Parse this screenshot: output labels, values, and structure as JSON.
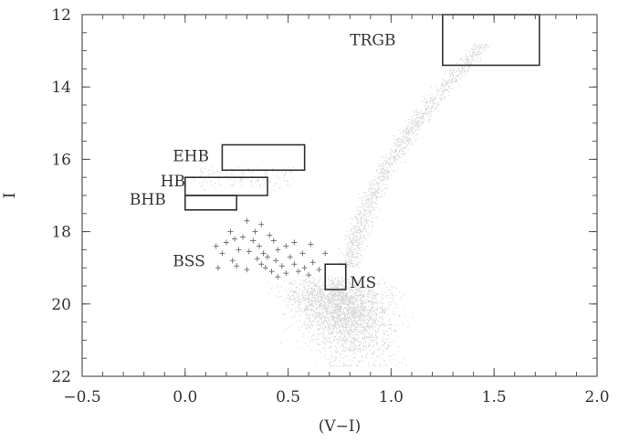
{
  "chart_data": {
    "type": "scatter",
    "xlabel": "(V−I)",
    "ylabel": "I",
    "xlim": [
      -0.5,
      2.0
    ],
    "ylim": [
      22,
      12
    ],
    "y_inverted": true,
    "x_ticks": [
      {
        "value": -0.5,
        "label": "−0.5"
      },
      {
        "value": 0.0,
        "label": "0.0"
      },
      {
        "value": 0.5,
        "label": "0.5"
      },
      {
        "value": 1.0,
        "label": "1.0"
      },
      {
        "value": 1.5,
        "label": "1.5"
      },
      {
        "value": 2.0,
        "label": "2.0"
      }
    ],
    "y_ticks": [
      {
        "value": 12,
        "label": "12"
      },
      {
        "value": 14,
        "label": "14"
      },
      {
        "value": 16,
        "label": "16"
      },
      {
        "value": 18,
        "label": "18"
      },
      {
        "value": 20,
        "label": "20"
      },
      {
        "value": 22,
        "label": "22"
      }
    ],
    "grid": false,
    "boxes": [
      {
        "name": "TRGB",
        "x": [
          1.25,
          1.72
        ],
        "y": [
          12.0,
          13.4
        ]
      },
      {
        "name": "EHB",
        "x": [
          0.18,
          0.58
        ],
        "y": [
          15.6,
          16.3
        ]
      },
      {
        "name": "HB",
        "x": [
          0.0,
          0.4
        ],
        "y": [
          16.5,
          17.0
        ]
      },
      {
        "name": "BHB",
        "x": [
          0.0,
          0.25
        ],
        "y": [
          17.0,
          17.4
        ]
      },
      {
        "name": "MS",
        "x": [
          0.68,
          0.78
        ],
        "y": [
          18.9,
          19.6
        ]
      }
    ],
    "labels": [
      {
        "text": "TRGB",
        "x": 0.8,
        "y": 12.7
      },
      {
        "text": "EHB",
        "x": -0.06,
        "y": 15.9
      },
      {
        "text": "HB",
        "x": -0.12,
        "y": 16.6
      },
      {
        "text": "BHB",
        "x": -0.27,
        "y": 17.1
      },
      {
        "text": "BSS",
        "x": -0.06,
        "y": 18.8
      },
      {
        "text": "MS",
        "x": 0.8,
        "y": 19.4
      }
    ],
    "bss_points": [
      {
        "x": 0.3,
        "y": 17.7
      },
      {
        "x": 0.37,
        "y": 17.8
      },
      {
        "x": 0.22,
        "y": 18.0
      },
      {
        "x": 0.34,
        "y": 18.0
      },
      {
        "x": 0.41,
        "y": 18.1
      },
      {
        "x": 0.28,
        "y": 18.15
      },
      {
        "x": 0.24,
        "y": 18.2
      },
      {
        "x": 0.33,
        "y": 18.25
      },
      {
        "x": 0.43,
        "y": 18.25
      },
      {
        "x": 0.53,
        "y": 18.3
      },
      {
        "x": 0.61,
        "y": 18.35
      },
      {
        "x": 0.49,
        "y": 18.4
      },
      {
        "x": 0.15,
        "y": 18.4
      },
      {
        "x": 0.36,
        "y": 18.4
      },
      {
        "x": 0.26,
        "y": 18.5
      },
      {
        "x": 0.45,
        "y": 18.5
      },
      {
        "x": 0.31,
        "y": 18.55
      },
      {
        "x": 0.38,
        "y": 18.6
      },
      {
        "x": 0.57,
        "y": 18.6
      },
      {
        "x": 0.68,
        "y": 18.6
      },
      {
        "x": 0.18,
        "y": 18.6
      },
      {
        "x": 0.4,
        "y": 18.7
      },
      {
        "x": 0.51,
        "y": 18.7
      },
      {
        "x": 0.35,
        "y": 18.75
      },
      {
        "x": 0.23,
        "y": 18.8
      },
      {
        "x": 0.44,
        "y": 18.8
      },
      {
        "x": 0.62,
        "y": 18.85
      },
      {
        "x": 0.37,
        "y": 18.9
      },
      {
        "x": 0.53,
        "y": 18.9
      },
      {
        "x": 0.47,
        "y": 18.95
      },
      {
        "x": 0.16,
        "y": 19.0
      },
      {
        "x": 0.39,
        "y": 19.0
      },
      {
        "x": 0.58,
        "y": 19.0
      },
      {
        "x": 0.3,
        "y": 19.05
      },
      {
        "x": 0.42,
        "y": 19.1
      },
      {
        "x": 0.49,
        "y": 19.15
      },
      {
        "x": 0.55,
        "y": 19.1
      },
      {
        "x": 0.45,
        "y": 19.25
      },
      {
        "x": 0.6,
        "y": 19.2
      },
      {
        "x": 0.25,
        "y": 18.95
      },
      {
        "x": 0.2,
        "y": 18.3
      },
      {
        "x": 0.65,
        "y": 19.05
      }
    ]
  }
}
